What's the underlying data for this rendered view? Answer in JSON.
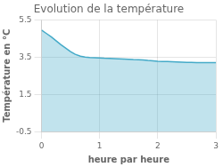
{
  "chart_data": {
    "type": "area",
    "title": "Evolution de la température",
    "xlabel": "heure par heure",
    "ylabel": "Température en °C",
    "color": "#44aac8",
    "x": [
      0.0,
      0.08,
      0.17,
      0.25,
      0.33,
      0.42,
      0.5,
      0.58,
      0.67,
      0.75,
      0.83,
      0.92,
      1.0,
      1.08,
      1.17,
      1.25,
      1.33,
      1.42,
      1.5,
      1.58,
      1.67,
      1.75,
      1.83,
      1.92,
      2.0,
      2.08,
      2.17,
      2.25,
      2.33,
      2.42,
      2.5,
      2.58,
      2.67,
      2.75,
      2.83,
      2.92,
      3.0
    ],
    "values": [
      4.95,
      4.78,
      4.58,
      4.38,
      4.18,
      3.98,
      3.8,
      3.65,
      3.55,
      3.5,
      3.48,
      3.47,
      3.46,
      3.44,
      3.43,
      3.42,
      3.41,
      3.4,
      3.39,
      3.37,
      3.36,
      3.35,
      3.32,
      3.3,
      3.28,
      3.27,
      3.26,
      3.25,
      3.24,
      3.23,
      3.22,
      3.22,
      3.21,
      3.21,
      3.2,
      3.2,
      3.2
    ],
    "xlim": [
      0,
      3
    ],
    "ylim": [
      -0.5,
      5.5
    ],
    "xticks": [
      0,
      1,
      2,
      3
    ],
    "yticks": [
      -0.5,
      1.5,
      3.5,
      5.5
    ],
    "grid": true
  }
}
